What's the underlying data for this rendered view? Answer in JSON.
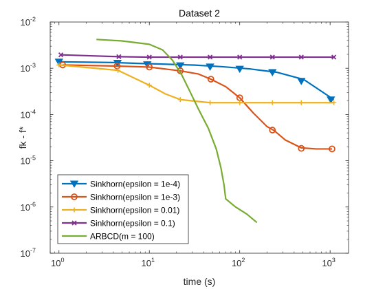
{
  "chart_data": {
    "type": "line",
    "title": "Dataset 2",
    "xlabel": "time (s)",
    "ylabel": "fk - f*",
    "xscale": "log",
    "yscale": "log",
    "xlim": [
      0.8,
      1600
    ],
    "ylim": [
      1e-07,
      0.01
    ],
    "grid": false,
    "legend_position": "bottom-left",
    "x_ticks": [
      {
        "value": 1,
        "base": "10",
        "exp": "0"
      },
      {
        "value": 10,
        "base": "10",
        "exp": "1"
      },
      {
        "value": 100,
        "base": "10",
        "exp": "2"
      },
      {
        "value": 1000,
        "base": "10",
        "exp": "3"
      }
    ],
    "y_ticks": [
      {
        "value": 1e-07,
        "base": "10",
        "exp": "-7"
      },
      {
        "value": 1e-06,
        "base": "10",
        "exp": "-6"
      },
      {
        "value": 1e-05,
        "base": "10",
        "exp": "-5"
      },
      {
        "value": 0.0001,
        "base": "10",
        "exp": "-4"
      },
      {
        "value": 0.001,
        "base": "10",
        "exp": "-3"
      },
      {
        "value": 0.01,
        "base": "10",
        "exp": "-2"
      }
    ],
    "series": [
      {
        "name": "Sinkhorn(epsilon = 1e-4)",
        "color": "#0072BD",
        "marker": "triangle-down",
        "x": [
          1.0,
          4.0,
          8.0,
          16.0,
          32.0,
          64.0,
          128.0,
          256.0,
          512.0,
          1100.0
        ],
        "y": [
          0.00138,
          0.00133,
          0.00127,
          0.00122,
          0.00117,
          0.00108,
          0.00097,
          0.00082,
          0.00057,
          0.00021
        ],
        "marker_x": [
          1.0,
          4.45,
          9.5,
          22.0,
          47.0,
          100.0,
          230.0,
          480.0,
          1020.0
        ],
        "marker_y": [
          0.00138,
          0.0013,
          0.00121,
          0.00115,
          0.00108,
          0.00097,
          0.00082,
          0.00053,
          0.00021
        ]
      },
      {
        "name": "Sinkhorn(epsilon = 1e-3)",
        "color": "#D95319",
        "marker": "circle",
        "x": [
          1.1,
          4.0,
          10.0,
          22.0,
          35.0,
          48.0,
          70.0,
          100.0,
          140.0,
          200.0,
          240.0,
          320.0,
          480.0,
          700.0,
          1050.0
        ],
        "y": [
          0.00118,
          0.00112,
          0.00106,
          0.00088,
          0.00075,
          0.00058,
          0.0004,
          0.00023,
          0.00011,
          5.5e-05,
          4.5e-05,
          2.8e-05,
          1.9e-05,
          1.8e-05,
          1.8e-05
        ],
        "marker_x": [
          1.1,
          4.4,
          10.0,
          22.0,
          48.0,
          100.0,
          230.0,
          480.0,
          1050.0
        ],
        "marker_y": [
          0.00118,
          0.00112,
          0.00106,
          0.00088,
          0.00058,
          0.00023,
          4.6e-05,
          1.85e-05,
          1.8e-05
        ]
      },
      {
        "name": "Sinkhorn(epsilon = 0.01)",
        "color": "#EDB120",
        "marker": "plus",
        "x": [
          1.0,
          4.5,
          10.0,
          15.0,
          22.0,
          47.0,
          100.0,
          230.0,
          480.0,
          1100.0
        ],
        "y": [
          0.00118,
          0.0009,
          0.00043,
          0.00028,
          0.00021,
          0.00018,
          0.00018,
          0.00018,
          0.00018,
          0.00018
        ],
        "marker_x": [
          1.0,
          4.5,
          10.0,
          22.0,
          47.0,
          100.0,
          230.0,
          480.0,
          1100.0
        ],
        "marker_y": [
          0.00118,
          0.0009,
          0.00043,
          0.00021,
          0.00018,
          0.00018,
          0.00018,
          0.00018,
          0.00018
        ]
      },
      {
        "name": "Sinkhorn(epsilon = 0.1)",
        "color": "#7E2F8E",
        "marker": "x",
        "x": [
          1.05,
          4.6,
          10.0,
          22.0,
          47.0,
          100.0,
          230.0,
          480.0,
          1100.0
        ],
        "y": [
          0.00195,
          0.00178,
          0.00174,
          0.00174,
          0.00174,
          0.00174,
          0.00174,
          0.00174,
          0.00174
        ],
        "marker_x": [
          1.05,
          4.6,
          10.0,
          22.0,
          47.0,
          100.0,
          230.0,
          480.0,
          1100.0
        ],
        "marker_y": [
          0.00195,
          0.00178,
          0.00174,
          0.00174,
          0.00174,
          0.00174,
          0.00174,
          0.00174,
          0.00174
        ]
      },
      {
        "name": "ARBCD(m = 100)",
        "color": "#77AC30",
        "marker": "none",
        "x": [
          2.6,
          5.0,
          10.0,
          14.0,
          18.0,
          23.0,
          28.0,
          35.0,
          45.0,
          55.0,
          62.0,
          67.0,
          70.0,
          90.0,
          120.0,
          155.0
        ],
        "y": [
          0.0042,
          0.0039,
          0.0033,
          0.0025,
          0.0015,
          0.0007,
          0.00032,
          0.00013,
          5e-05,
          1.8e-05,
          7e-06,
          3e-06,
          1.5e-06,
          1e-06,
          7e-07,
          4.6e-07
        ],
        "marker_x": [],
        "marker_y": []
      }
    ]
  }
}
